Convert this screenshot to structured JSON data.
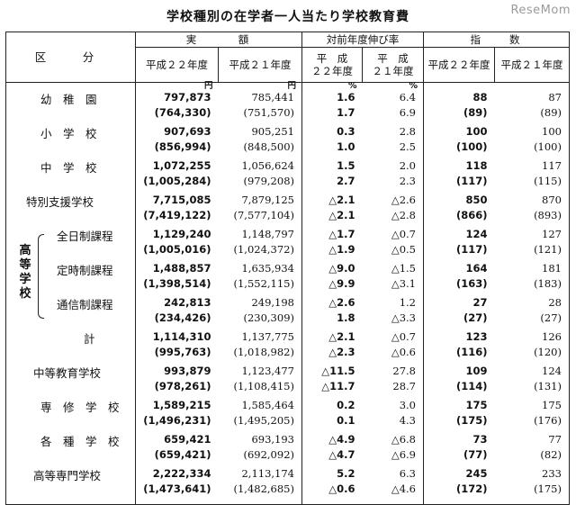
{
  "title": "学校種別の在学者一人当たり学校教育費",
  "watermark": "ReseMom",
  "header": {
    "kubun": "区　分",
    "jitsugaku": "実　　　額",
    "nobiritsu": "対前年度伸び率",
    "shisu": "指　　数",
    "h22": "平成２２年度",
    "h21": "平成２１年度",
    "h22b": "平　成\n２２年度",
    "h21b": "平　成\n２１年度"
  },
  "units": {
    "yen22": "円",
    "yen21": "円",
    "pct22": "%",
    "pct21": "%"
  },
  "high_school_label": "高\n等\n学\n校",
  "rows": [
    {
      "label": "幼　稚　園",
      "v22": "797,873",
      "v22b": "(764,330)",
      "v21": "785,441",
      "v21b": "(751,570)",
      "g22": "1.6",
      "g22b": "1.7",
      "g21": "6.4",
      "g21b": "6.9",
      "i22": "88",
      "i22b": "(89)",
      "i21": "87",
      "i21b": "(89)"
    },
    {
      "label": "小　学　校",
      "v22": "907,693",
      "v22b": "(856,994)",
      "v21": "905,251",
      "v21b": "(848,500)",
      "g22": "0.3",
      "g22b": "1.0",
      "g21": "2.8",
      "g21b": "2.5",
      "i22": "100",
      "i22b": "(100)",
      "i21": "100",
      "i21b": "(100)"
    },
    {
      "label": "中　学　校",
      "v22": "1,072,255",
      "v22b": "(1,005,284)",
      "v21": "1,056,624",
      "v21b": "(979,208)",
      "g22": "1.5",
      "g22b": "2.7",
      "g21": "2.0",
      "g21b": "2.3",
      "i22": "118",
      "i22b": "(117)",
      "i21": "117",
      "i21b": "(115)"
    },
    {
      "label": "特別支援学校",
      "v22": "7,715,085",
      "v22b": "(7,419,122)",
      "v21": "7,879,125",
      "v21b": "(7,577,104)",
      "g22": "△2.1",
      "g22b": "△2.1",
      "g21": "△2.6",
      "g21b": "△2.8",
      "i22": "850",
      "i22b": "(866)",
      "i21": "870",
      "i21b": "(893)"
    },
    {
      "label": "全日制課程",
      "v22": "1,129,240",
      "v22b": "(1,005,016)",
      "v21": "1,148,797",
      "v21b": "(1,024,372)",
      "g22": "△1.7",
      "g22b": "△1.9",
      "g21": "△0.7",
      "g21b": "△0.5",
      "i22": "124",
      "i22b": "(117)",
      "i21": "127",
      "i21b": "(121)"
    },
    {
      "label": "定時制課程",
      "v22": "1,488,857",
      "v22b": "(1,398,514)",
      "v21": "1,635,934",
      "v21b": "(1,552,115)",
      "g22": "△9.0",
      "g22b": "△9.9",
      "g21": "△1.5",
      "g21b": "△3.1",
      "i22": "164",
      "i22b": "(163)",
      "i21": "181",
      "i21b": "(183)"
    },
    {
      "label": "通信制課程",
      "v22": "242,813",
      "v22b": "(234,426)",
      "v21": "249,198",
      "v21b": "(230,309)",
      "g22": "△2.6",
      "g22b": "1.8",
      "g21": "1.2",
      "g21b": "△3.3",
      "i22": "27",
      "i22b": "(27)",
      "i21": "28",
      "i21b": "(27)"
    },
    {
      "label": "計",
      "v22": "1,114,310",
      "v22b": "(995,763)",
      "v21": "1,137,775",
      "v21b": "(1,018,982)",
      "g22": "△2.1",
      "g22b": "△2.3",
      "g21": "△0.7",
      "g21b": "△0.6",
      "i22": "123",
      "i22b": "(116)",
      "i21": "126",
      "i21b": "(120)"
    },
    {
      "label": "中等教育学校",
      "v22": "993,879",
      "v22b": "(978,261)",
      "v21": "1,123,477",
      "v21b": "(1,108,415)",
      "g22": "△11.5",
      "g22b": "△11.7",
      "g21": "27.8",
      "g21b": "28.7",
      "i22": "109",
      "i22b": "(114)",
      "i21": "124",
      "i21b": "(131)"
    },
    {
      "label": "専　修　学　校",
      "v22": "1,589,215",
      "v22b": "(1,496,231)",
      "v21": "1,585,464",
      "v21b": "(1,495,205)",
      "g22": "0.2",
      "g22b": "0.1",
      "g21": "3.0",
      "g21b": "4.3",
      "i22": "175",
      "i22b": "(175)",
      "i21": "175",
      "i21b": "(176)"
    },
    {
      "label": "各　種　学　校",
      "v22": "659,421",
      "v22b": "(659,421)",
      "v21": "693,193",
      "v21b": "(692,092)",
      "g22": "△4.9",
      "g22b": "△4.7",
      "g21": "△6.8",
      "g21b": "△6.9",
      "i22": "73",
      "i22b": "(77)",
      "i21": "77",
      "i21b": "(82)"
    },
    {
      "label": "高等専門学校",
      "v22": "2,222,334",
      "v22b": "(1,473,641)",
      "v21": "2,113,174",
      "v21b": "(1,482,685)",
      "g22": "5.2",
      "g22b": "△0.6",
      "g21": "6.3",
      "g21b": "△4.6",
      "i22": "245",
      "i22b": "(172)",
      "i21": "233",
      "i21b": "(175)"
    }
  ]
}
